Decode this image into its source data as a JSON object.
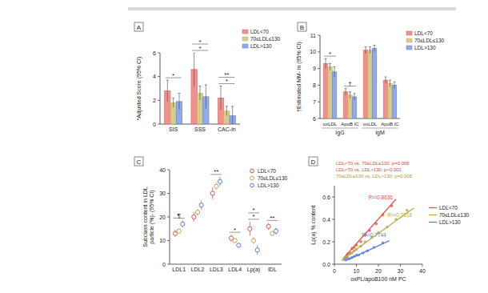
{
  "chart_data": [
    {
      "type": "bar",
      "panel": "A",
      "ylabel": [
        "*Adjusted Score (95% CI)"
      ],
      "categories": [
        "SIS",
        "SSS",
        "CAC-ln"
      ],
      "series": [
        {
          "name": "LDL<70",
          "color": "#ee6b68",
          "values": [
            2.8,
            4.6,
            2.2
          ],
          "errors": [
            0.9,
            1.4,
            1.0
          ]
        },
        {
          "name": "70≤LDL≤130",
          "color": "#c8bb66",
          "values": [
            1.8,
            2.6,
            1.1
          ],
          "errors": [
            0.4,
            0.6,
            0.4
          ]
        },
        {
          "name": "LDL>130",
          "color": "#6d8de0",
          "values": [
            1.9,
            2.3,
            0.7
          ],
          "errors": [
            0.7,
            1.0,
            0.8
          ]
        }
      ],
      "ylim": [
        0,
        6
      ],
      "yticks": [
        0,
        2,
        4,
        6
      ],
      "legend": "top-right",
      "annotations": [
        {
          "text": "*",
          "category": 0
        },
        {
          "text": "*",
          "category": 1
        },
        {
          "text": "*",
          "category": 1
        },
        {
          "text": "*",
          "category": 2
        },
        {
          "text": "**",
          "category": 2
        }
      ]
    },
    {
      "type": "bar",
      "panel": "B",
      "ylabel": [
        "†Estimated MM- ln (95% CI)"
      ],
      "categories": [
        "oxLDL",
        "ApoB IC",
        "oxLDL",
        "ApoB IC"
      ],
      "groups": [
        {
          "label": "IgG",
          "categories": [
            0,
            1
          ]
        },
        {
          "label": "IgM",
          "categories": [
            2,
            3
          ]
        }
      ],
      "series": [
        {
          "name": "LDL<70",
          "color": "#ee6b68",
          "values": [
            9.3,
            7.6,
            10.1,
            8.3
          ],
          "errors": [
            0.3,
            0.2,
            0.2,
            0.2
          ]
        },
        {
          "name": "70≤LDL≤130",
          "color": "#c8bb66",
          "values": [
            9.1,
            7.4,
            10.1,
            8.1
          ],
          "errors": [
            0.2,
            0.2,
            0.2,
            0.2
          ]
        },
        {
          "name": "LDL>130",
          "color": "#6d8de0",
          "values": [
            8.8,
            7.3,
            10.2,
            8.0
          ],
          "errors": [
            0.3,
            0.2,
            0.2,
            0.2
          ]
        }
      ],
      "ylim": [
        6,
        11
      ],
      "yticks": [
        6,
        7,
        8,
        9,
        10,
        11
      ],
      "legend": "top-right",
      "annotations": [
        {
          "text": "*",
          "category": 0
        },
        {
          "text": "†",
          "category": 1
        }
      ]
    },
    {
      "type": "dot",
      "panel": "C",
      "ylabel": [
        "Subclass content in LDL",
        "particle (%)- (95% CI)"
      ],
      "categories": [
        "LDL1",
        "LDL2",
        "LDL3",
        "LDL4",
        "Lp(a)",
        "IDL"
      ],
      "series": [
        {
          "name": "LDL<70",
          "color": "#e8504a",
          "values": [
            13,
            20,
            30,
            11,
            15,
            16
          ],
          "errors": [
            1.5,
            2,
            2.5,
            1.5,
            3,
            1.5
          ]
        },
        {
          "name": "70≤LDL≤130",
          "color": "#b8a84a",
          "values": [
            14,
            22,
            33,
            10,
            10,
            13
          ],
          "errors": [
            1,
            1.5,
            1.5,
            1,
            1.5,
            1
          ]
        },
        {
          "name": "LDL>130",
          "color": "#5a7fdc",
          "values": [
            17,
            25,
            35,
            8,
            6,
            14
          ],
          "errors": [
            1.5,
            2,
            2,
            1,
            2,
            1.5
          ]
        }
      ],
      "ylim": [
        0,
        40
      ],
      "yticks": [
        0,
        10,
        20,
        30,
        40
      ],
      "legend": "top-right",
      "annotations": [
        {
          "text": "¶",
          "category": 0
        },
        {
          "text": "**",
          "category": 2
        },
        {
          "text": "*",
          "category": 3
        },
        {
          "text": "*",
          "category": 4
        },
        {
          "text": "*",
          "category": 4
        },
        {
          "text": "**",
          "category": 5
        }
      ]
    },
    {
      "type": "scatter",
      "panel": "D",
      "xlabel": "oxPL/apoB100 nM PC",
      "ylabel": [
        "Lp(a) % content"
      ],
      "series": [
        {
          "name": "LDL<70",
          "color": "#e8504a",
          "x": [
            5,
            6,
            7,
            8,
            9,
            10,
            12,
            14,
            16,
            19,
            22,
            26
          ],
          "values": [
            0.06,
            0.09,
            0.1,
            0.14,
            0.15,
            0.17,
            0.2,
            0.26,
            0.3,
            0.36,
            0.44,
            0.52
          ],
          "fit": {
            "x": [
              4,
              28
            ],
            "values": [
              0.05,
              0.58
            ]
          },
          "fit_label": "R²=0.8636"
        },
        {
          "name": "70≤LDL≤130",
          "color": "#b8a84a",
          "x": [
            4,
            5,
            6,
            7,
            8,
            9,
            10,
            12,
            14,
            17,
            20,
            24,
            28,
            33
          ],
          "values": [
            0.04,
            0.06,
            0.07,
            0.09,
            0.1,
            0.12,
            0.13,
            0.16,
            0.2,
            0.24,
            0.28,
            0.33,
            0.4,
            0.48
          ],
          "fit": {
            "x": [
              4,
              36
            ],
            "values": [
              0.05,
              0.5
            ]
          },
          "fit_label": "R²=0.7518"
        },
        {
          "name": "LDL>130",
          "color": "#5a7fdc",
          "x": [
            5,
            6,
            7,
            8,
            9,
            10,
            11,
            13,
            15,
            18,
            22
          ],
          "values": [
            0.04,
            0.05,
            0.05,
            0.06,
            0.07,
            0.08,
            0.08,
            0.1,
            0.12,
            0.15,
            0.19
          ],
          "fit": {
            "x": [
              5,
              25
            ],
            "values": [
              0.03,
              0.21
            ]
          },
          "fit_label": "R²=0.7744"
        }
      ],
      "xlim": [
        0,
        40
      ],
      "xticks": [
        0,
        10,
        20,
        30,
        40
      ],
      "ylim": [
        0,
        0.7
      ],
      "yticks": [
        {
          "value": 0,
          "label": "0.0"
        },
        0.2,
        0.4,
        0.6
      ],
      "legend": "right",
      "annotations": [
        {
          "text": "LDL<70 vs. 70≤LDL≤130; p=0.005",
          "color": "#e0443f"
        },
        {
          "text": "LDL<70 vs. LDL>130; p<0.001",
          "color": "#e0443f"
        },
        {
          "text": "70≤LDL≤130 vs. LDL>130; p=0.005",
          "color": "#a89a30"
        }
      ]
    }
  ]
}
